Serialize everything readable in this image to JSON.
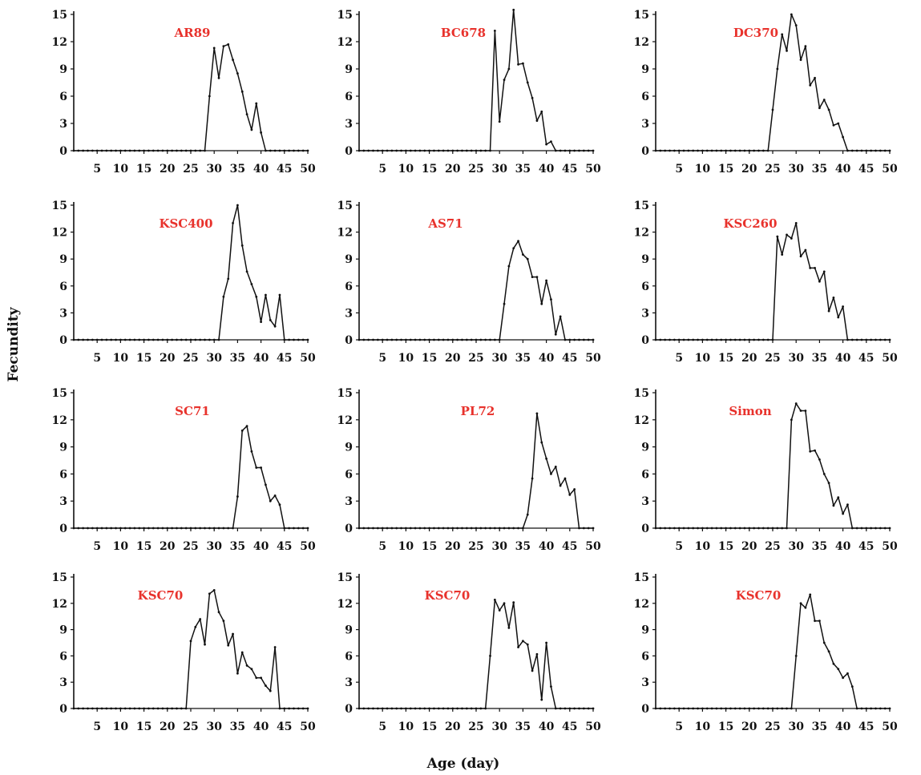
{
  "figure": {
    "xlabel": "Age (day)",
    "ylabel": "Fecundity"
  },
  "colors": {
    "title": "#e8322c",
    "line": "#111111",
    "axis": "#111111"
  },
  "chart_data": [
    {
      "type": "line",
      "title": "AR89",
      "xlim": [
        0,
        50
      ],
      "ylim": [
        0,
        15
      ],
      "xticks": [
        5,
        10,
        15,
        20,
        25,
        30,
        35,
        40,
        45,
        50
      ],
      "yticks": [
        0,
        3,
        6,
        9,
        12,
        15
      ],
      "x": [
        0,
        1,
        2,
        3,
        4,
        5,
        6,
        7,
        8,
        9,
        10,
        11,
        12,
        13,
        14,
        15,
        16,
        17,
        18,
        19,
        20,
        21,
        22,
        23,
        24,
        25,
        26,
        27,
        28,
        29,
        30,
        31,
        32,
        33,
        34,
        35,
        36,
        37,
        38,
        39,
        40,
        41,
        42,
        43,
        44,
        45,
        46,
        47,
        48,
        49,
        50
      ],
      "y": [
        0,
        0,
        0,
        0,
        0,
        0,
        0,
        0,
        0,
        0,
        0,
        0,
        0,
        0,
        0,
        0,
        0,
        0,
        0,
        0,
        0,
        0,
        0,
        0,
        0,
        0,
        0,
        0,
        0,
        6,
        11.3,
        8,
        11.5,
        11.7,
        10,
        8.5,
        6.5,
        4,
        2.3,
        5.2,
        2,
        0,
        0,
        0,
        0,
        0,
        0,
        0,
        0,
        0,
        0
      ]
    },
    {
      "type": "line",
      "title": "BC678",
      "xlim": [
        0,
        50
      ],
      "ylim": [
        0,
        15
      ],
      "xticks": [
        5,
        10,
        15,
        20,
        25,
        30,
        35,
        40,
        45,
        50
      ],
      "yticks": [
        0,
        3,
        6,
        9,
        12,
        15
      ],
      "x": [
        0,
        1,
        2,
        3,
        4,
        5,
        6,
        7,
        8,
        9,
        10,
        11,
        12,
        13,
        14,
        15,
        16,
        17,
        18,
        19,
        20,
        21,
        22,
        23,
        24,
        25,
        26,
        27,
        28,
        29,
        30,
        31,
        32,
        33,
        34,
        35,
        36,
        37,
        38,
        39,
        40,
        41,
        42,
        43,
        44,
        45,
        46,
        47,
        48,
        49,
        50
      ],
      "y": [
        0,
        0,
        0,
        0,
        0,
        0,
        0,
        0,
        0,
        0,
        0,
        0,
        0,
        0,
        0,
        0,
        0,
        0,
        0,
        0,
        0,
        0,
        0,
        0,
        0,
        0,
        0,
        0,
        0,
        13.2,
        3.2,
        7.8,
        9,
        15.5,
        9.5,
        9.6,
        7.5,
        5.8,
        3.3,
        4.3,
        0.7,
        1,
        0,
        0,
        0,
        0,
        0,
        0,
        0,
        0,
        0
      ]
    },
    {
      "type": "line",
      "title": "DC370",
      "xlim": [
        0,
        50
      ],
      "ylim": [
        0,
        15
      ],
      "xticks": [
        5,
        10,
        15,
        20,
        25,
        30,
        35,
        40,
        45,
        50
      ],
      "yticks": [
        0,
        3,
        6,
        9,
        12,
        15
      ],
      "x": [
        0,
        1,
        2,
        3,
        4,
        5,
        6,
        7,
        8,
        9,
        10,
        11,
        12,
        13,
        14,
        15,
        16,
        17,
        18,
        19,
        20,
        21,
        22,
        23,
        24,
        25,
        26,
        27,
        28,
        29,
        30,
        31,
        32,
        33,
        34,
        35,
        36,
        37,
        38,
        39,
        40,
        41,
        42,
        43,
        44,
        45,
        46,
        47,
        48,
        49,
        50
      ],
      "y": [
        0,
        0,
        0,
        0,
        0,
        0,
        0,
        0,
        0,
        0,
        0,
        0,
        0,
        0,
        0,
        0,
        0,
        0,
        0,
        0,
        0,
        0,
        0,
        0,
        0,
        4.5,
        9,
        12.8,
        11,
        15,
        13.8,
        10,
        11.5,
        7.2,
        8,
        4.7,
        5.6,
        4.5,
        2.8,
        3,
        1.5,
        0,
        0,
        0,
        0,
        0,
        0,
        0,
        0,
        0,
        0
      ]
    },
    {
      "type": "line",
      "title": "KSC400",
      "xlim": [
        0,
        50
      ],
      "ylim": [
        0,
        15
      ],
      "xticks": [
        5,
        10,
        15,
        20,
        25,
        30,
        35,
        40,
        45,
        50
      ],
      "yticks": [
        0,
        3,
        6,
        9,
        12,
        15
      ],
      "x": [
        0,
        1,
        2,
        3,
        4,
        5,
        6,
        7,
        8,
        9,
        10,
        11,
        12,
        13,
        14,
        15,
        16,
        17,
        18,
        19,
        20,
        21,
        22,
        23,
        24,
        25,
        26,
        27,
        28,
        29,
        30,
        31,
        32,
        33,
        34,
        35,
        36,
        37,
        38,
        39,
        40,
        41,
        42,
        43,
        44,
        45,
        46,
        47,
        48,
        49,
        50
      ],
      "y": [
        0,
        0,
        0,
        0,
        0,
        0,
        0,
        0,
        0,
        0,
        0,
        0,
        0,
        0,
        0,
        0,
        0,
        0,
        0,
        0,
        0,
        0,
        0,
        0,
        0,
        0,
        0,
        0,
        0,
        0,
        0,
        0,
        4.8,
        6.8,
        13,
        15,
        10.5,
        7.6,
        6.2,
        4.8,
        2,
        5,
        2.2,
        1.5,
        5,
        0,
        0,
        0,
        0,
        0,
        0
      ]
    },
    {
      "type": "line",
      "title": "AS71",
      "xlim": [
        0,
        50
      ],
      "ylim": [
        0,
        15
      ],
      "xticks": [
        5,
        10,
        15,
        20,
        25,
        30,
        35,
        40,
        45,
        50
      ],
      "yticks": [
        0,
        3,
        6,
        9,
        12,
        15
      ],
      "x": [
        0,
        1,
        2,
        3,
        4,
        5,
        6,
        7,
        8,
        9,
        10,
        11,
        12,
        13,
        14,
        15,
        16,
        17,
        18,
        19,
        20,
        21,
        22,
        23,
        24,
        25,
        26,
        27,
        28,
        29,
        30,
        31,
        32,
        33,
        34,
        35,
        36,
        37,
        38,
        39,
        40,
        41,
        42,
        43,
        44,
        45,
        46,
        47,
        48,
        49,
        50
      ],
      "y": [
        0,
        0,
        0,
        0,
        0,
        0,
        0,
        0,
        0,
        0,
        0,
        0,
        0,
        0,
        0,
        0,
        0,
        0,
        0,
        0,
        0,
        0,
        0,
        0,
        0,
        0,
        0,
        0,
        0,
        0,
        0,
        4,
        8.2,
        10.2,
        11,
        9.5,
        9,
        7,
        7,
        4,
        6.6,
        4.5,
        0.6,
        2.6,
        0,
        0,
        0,
        0,
        0,
        0,
        0
      ]
    },
    {
      "type": "line",
      "title": "KSC260",
      "xlim": [
        0,
        50
      ],
      "ylim": [
        0,
        15
      ],
      "xticks": [
        5,
        10,
        15,
        20,
        25,
        30,
        35,
        40,
        45,
        50
      ],
      "yticks": [
        0,
        3,
        6,
        9,
        12,
        15
      ],
      "x": [
        0,
        1,
        2,
        3,
        4,
        5,
        6,
        7,
        8,
        9,
        10,
        11,
        12,
        13,
        14,
        15,
        16,
        17,
        18,
        19,
        20,
        21,
        22,
        23,
        24,
        25,
        26,
        27,
        28,
        29,
        30,
        31,
        32,
        33,
        34,
        35,
        36,
        37,
        38,
        39,
        40,
        41,
        42,
        43,
        44,
        45,
        46,
        47,
        48,
        49,
        50
      ],
      "y": [
        0,
        0,
        0,
        0,
        0,
        0,
        0,
        0,
        0,
        0,
        0,
        0,
        0,
        0,
        0,
        0,
        0,
        0,
        0,
        0,
        0,
        0,
        0,
        0,
        0,
        0,
        11.5,
        9.5,
        11.7,
        11.3,
        13,
        9.3,
        10,
        8,
        8,
        6.5,
        7.6,
        3.2,
        4.7,
        2.5,
        3.7,
        0,
        0,
        0,
        0,
        0,
        0,
        0,
        0,
        0,
        0
      ]
    },
    {
      "type": "line",
      "title": "SC71",
      "xlim": [
        0,
        50
      ],
      "ylim": [
        0,
        15
      ],
      "xticks": [
        5,
        10,
        15,
        20,
        25,
        30,
        35,
        40,
        45,
        50
      ],
      "yticks": [
        0,
        3,
        6,
        9,
        12,
        15
      ],
      "x": [
        0,
        1,
        2,
        3,
        4,
        5,
        6,
        7,
        8,
        9,
        10,
        11,
        12,
        13,
        14,
        15,
        16,
        17,
        18,
        19,
        20,
        21,
        22,
        23,
        24,
        25,
        26,
        27,
        28,
        29,
        30,
        31,
        32,
        33,
        34,
        35,
        36,
        37,
        38,
        39,
        40,
        41,
        42,
        43,
        44,
        45,
        46,
        47,
        48,
        49,
        50
      ],
      "y": [
        0,
        0,
        0,
        0,
        0,
        0,
        0,
        0,
        0,
        0,
        0,
        0,
        0,
        0,
        0,
        0,
        0,
        0,
        0,
        0,
        0,
        0,
        0,
        0,
        0,
        0,
        0,
        0,
        0,
        0,
        0,
        0,
        0,
        0,
        0,
        3.5,
        10.8,
        11.3,
        8.5,
        6.7,
        6.7,
        4.8,
        3,
        3.6,
        2.6,
        0,
        0,
        0,
        0,
        0,
        0
      ]
    },
    {
      "type": "line",
      "title": "PL72",
      "xlim": [
        0,
        50
      ],
      "ylim": [
        0,
        15
      ],
      "xticks": [
        5,
        10,
        15,
        20,
        25,
        30,
        35,
        40,
        45,
        50
      ],
      "yticks": [
        0,
        3,
        6,
        9,
        12,
        15
      ],
      "x": [
        0,
        1,
        2,
        3,
        4,
        5,
        6,
        7,
        8,
        9,
        10,
        11,
        12,
        13,
        14,
        15,
        16,
        17,
        18,
        19,
        20,
        21,
        22,
        23,
        24,
        25,
        26,
        27,
        28,
        29,
        30,
        31,
        32,
        33,
        34,
        35,
        36,
        37,
        38,
        39,
        40,
        41,
        42,
        43,
        44,
        45,
        46,
        47,
        48,
        49,
        50
      ],
      "y": [
        0,
        0,
        0,
        0,
        0,
        0,
        0,
        0,
        0,
        0,
        0,
        0,
        0,
        0,
        0,
        0,
        0,
        0,
        0,
        0,
        0,
        0,
        0,
        0,
        0,
        0,
        0,
        0,
        0,
        0,
        0,
        0,
        0,
        0,
        0,
        0,
        1.5,
        5.5,
        12.7,
        9.5,
        7.7,
        6,
        6.8,
        4.7,
        5.5,
        3.7,
        4.3,
        0,
        0,
        0,
        0
      ]
    },
    {
      "type": "line",
      "title": "Simon",
      "xlim": [
        0,
        50
      ],
      "ylim": [
        0,
        15
      ],
      "xticks": [
        5,
        10,
        15,
        20,
        25,
        30,
        35,
        40,
        45,
        50
      ],
      "yticks": [
        0,
        3,
        6,
        9,
        12,
        15
      ],
      "x": [
        0,
        1,
        2,
        3,
        4,
        5,
        6,
        7,
        8,
        9,
        10,
        11,
        12,
        13,
        14,
        15,
        16,
        17,
        18,
        19,
        20,
        21,
        22,
        23,
        24,
        25,
        26,
        27,
        28,
        29,
        30,
        31,
        32,
        33,
        34,
        35,
        36,
        37,
        38,
        39,
        40,
        41,
        42,
        43,
        44,
        45,
        46,
        47,
        48,
        49,
        50
      ],
      "y": [
        0,
        0,
        0,
        0,
        0,
        0,
        0,
        0,
        0,
        0,
        0,
        0,
        0,
        0,
        0,
        0,
        0,
        0,
        0,
        0,
        0,
        0,
        0,
        0,
        0,
        0,
        0,
        0,
        0,
        12,
        13.8,
        13,
        13,
        8.5,
        8.6,
        7.6,
        6,
        5,
        2.5,
        3.4,
        1.6,
        2.6,
        0,
        0,
        0,
        0,
        0,
        0,
        0,
        0,
        0
      ]
    },
    {
      "type": "line",
      "title": "KSC70",
      "xlim": [
        0,
        50
      ],
      "ylim": [
        0,
        15
      ],
      "xticks": [
        5,
        10,
        15,
        20,
        25,
        30,
        35,
        40,
        45,
        50
      ],
      "yticks": [
        0,
        3,
        6,
        9,
        12,
        15
      ],
      "x": [
        0,
        1,
        2,
        3,
        4,
        5,
        6,
        7,
        8,
        9,
        10,
        11,
        12,
        13,
        14,
        15,
        16,
        17,
        18,
        19,
        20,
        21,
        22,
        23,
        24,
        25,
        26,
        27,
        28,
        29,
        30,
        31,
        32,
        33,
        34,
        35,
        36,
        37,
        38,
        39,
        40,
        41,
        42,
        43,
        44,
        45,
        46,
        47,
        48,
        49,
        50
      ],
      "y": [
        0,
        0,
        0,
        0,
        0,
        0,
        0,
        0,
        0,
        0,
        0,
        0,
        0,
        0,
        0,
        0,
        0,
        0,
        0,
        0,
        0,
        0,
        0,
        0,
        0,
        7.7,
        9.3,
        10.2,
        7.3,
        13.1,
        13.5,
        11,
        10,
        7.2,
        8.5,
        4,
        6.4,
        4.9,
        4.5,
        3.5,
        3.5,
        2.6,
        2,
        7,
        0,
        0,
        0,
        0,
        0,
        0,
        0
      ]
    },
    {
      "type": "line",
      "title": "KSC70",
      "xlim": [
        0,
        50
      ],
      "ylim": [
        0,
        15
      ],
      "xticks": [
        5,
        10,
        15,
        20,
        25,
        30,
        35,
        40,
        45,
        50
      ],
      "yticks": [
        0,
        3,
        6,
        9,
        12,
        15
      ],
      "x": [
        0,
        1,
        2,
        3,
        4,
        5,
        6,
        7,
        8,
        9,
        10,
        11,
        12,
        13,
        14,
        15,
        16,
        17,
        18,
        19,
        20,
        21,
        22,
        23,
        24,
        25,
        26,
        27,
        28,
        29,
        30,
        31,
        32,
        33,
        34,
        35,
        36,
        37,
        38,
        39,
        40,
        41,
        42,
        43,
        44,
        45,
        46,
        47,
        48,
        49,
        50
      ],
      "y": [
        0,
        0,
        0,
        0,
        0,
        0,
        0,
        0,
        0,
        0,
        0,
        0,
        0,
        0,
        0,
        0,
        0,
        0,
        0,
        0,
        0,
        0,
        0,
        0,
        0,
        0,
        0,
        0,
        6,
        12.4,
        11.2,
        12,
        9.2,
        12.1,
        7,
        7.7,
        7.3,
        4.3,
        6.2,
        1,
        7.5,
        2.5,
        0,
        0,
        0,
        0,
        0,
        0,
        0,
        0,
        0
      ]
    },
    {
      "type": "line",
      "title": "KSC70",
      "xlim": [
        0,
        50
      ],
      "ylim": [
        0,
        15
      ],
      "xticks": [
        5,
        10,
        15,
        20,
        25,
        30,
        35,
        40,
        45,
        50
      ],
      "yticks": [
        0,
        3,
        6,
        9,
        12,
        15
      ],
      "x": [
        0,
        1,
        2,
        3,
        4,
        5,
        6,
        7,
        8,
        9,
        10,
        11,
        12,
        13,
        14,
        15,
        16,
        17,
        18,
        19,
        20,
        21,
        22,
        23,
        24,
        25,
        26,
        27,
        28,
        29,
        30,
        31,
        32,
        33,
        34,
        35,
        36,
        37,
        38,
        39,
        40,
        41,
        42,
        43,
        44,
        45,
        46,
        47,
        48,
        49,
        50
      ],
      "y": [
        0,
        0,
        0,
        0,
        0,
        0,
        0,
        0,
        0,
        0,
        0,
        0,
        0,
        0,
        0,
        0,
        0,
        0,
        0,
        0,
        0,
        0,
        0,
        0,
        0,
        0,
        0,
        0,
        0,
        0,
        6,
        12,
        11.5,
        13,
        10,
        10,
        7.5,
        6.5,
        5.1,
        4.5,
        3.5,
        4,
        2.5,
        0,
        0,
        0,
        0,
        0,
        0,
        0,
        0
      ]
    }
  ]
}
